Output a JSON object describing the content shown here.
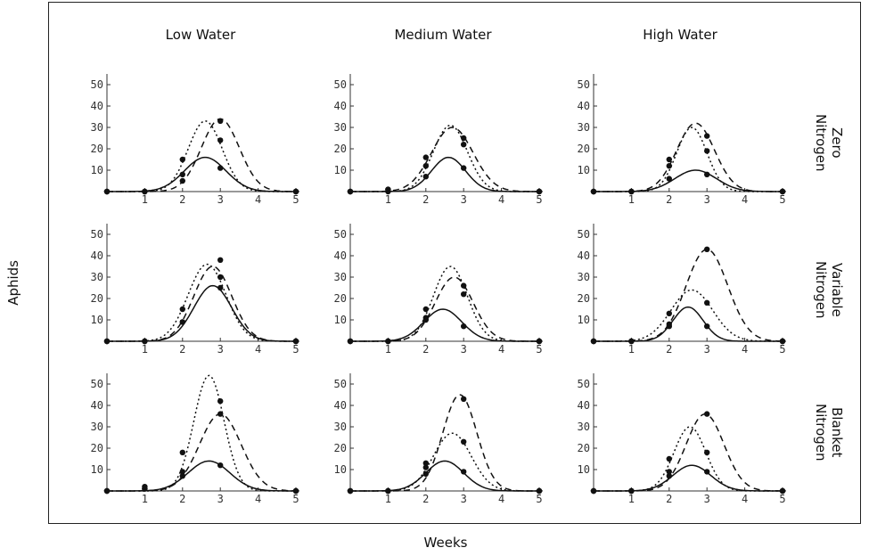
{
  "axes": {
    "xlabel": "Weeks",
    "ylabel": "Aphids"
  },
  "columns": [
    "Low Water",
    "Medium Water",
    "High Water"
  ],
  "rows": [
    [
      "Zero",
      "Nitrogen"
    ],
    [
      "Variable",
      "Nitrogen"
    ],
    [
      "Blanket",
      "Nitrogen"
    ]
  ],
  "chart_data": {
    "type": "line",
    "xlabel": "Weeks",
    "ylabel": "Aphids",
    "xlim": [
      0,
      5
    ],
    "ylim": [
      0,
      50
    ],
    "xticks": [
      1,
      2,
      3,
      4,
      5
    ],
    "yticks": [
      10,
      20,
      30,
      40,
      50
    ],
    "grid": false,
    "line_styles": [
      "solid",
      "dashed",
      "dotted"
    ],
    "panels": [
      {
        "column": "Low Water",
        "row": "Zero Nitrogen",
        "series": [
          {
            "style": "solid",
            "peak": 16,
            "center": 2.6,
            "width": 0.55,
            "points": [
              [
                0,
                0
              ],
              [
                1,
                0
              ],
              [
                2,
                8
              ],
              [
                3,
                11
              ],
              [
                5,
                0
              ]
            ]
          },
          {
            "style": "dashed",
            "peak": 34,
            "center": 3.0,
            "width": 0.5,
            "points": [
              [
                0,
                0
              ],
              [
                1,
                0
              ],
              [
                2,
                5
              ],
              [
                3,
                33
              ],
              [
                5,
                0
              ]
            ]
          },
          {
            "style": "dotted",
            "peak": 33,
            "center": 2.6,
            "width": 0.45,
            "points": [
              [
                0,
                0
              ],
              [
                1,
                0
              ],
              [
                2,
                15
              ],
              [
                3,
                24
              ],
              [
                5,
                0
              ]
            ]
          }
        ]
      },
      {
        "column": "Medium Water",
        "row": "Zero Nitrogen",
        "series": [
          {
            "style": "solid",
            "peak": 16,
            "center": 2.6,
            "width": 0.45,
            "points": [
              [
                0,
                0
              ],
              [
                1,
                1
              ],
              [
                2,
                7
              ],
              [
                3,
                11
              ],
              [
                5,
                0
              ]
            ]
          },
          {
            "style": "dashed",
            "peak": 30,
            "center": 2.7,
            "width": 0.55,
            "points": [
              [
                0,
                0
              ],
              [
                1,
                0
              ],
              [
                2,
                12
              ],
              [
                3,
                25
              ],
              [
                5,
                0
              ]
            ]
          },
          {
            "style": "dotted",
            "peak": 31,
            "center": 2.65,
            "width": 0.45,
            "points": [
              [
                0,
                0
              ],
              [
                1,
                1
              ],
              [
                2,
                16
              ],
              [
                3,
                22
              ],
              [
                5,
                0
              ]
            ]
          }
        ]
      },
      {
        "column": "High Water",
        "row": "Zero Nitrogen",
        "series": [
          {
            "style": "solid",
            "peak": 10,
            "center": 2.7,
            "width": 0.55,
            "points": [
              [
                0,
                0
              ],
              [
                1,
                0
              ],
              [
                2,
                6
              ],
              [
                3,
                8
              ],
              [
                5,
                0
              ]
            ]
          },
          {
            "style": "dashed",
            "peak": 32,
            "center": 2.7,
            "width": 0.5,
            "points": [
              [
                0,
                0
              ],
              [
                1,
                0
              ],
              [
                2,
                12
              ],
              [
                3,
                26
              ],
              [
                5,
                0
              ]
            ]
          },
          {
            "style": "dotted",
            "peak": 30,
            "center": 2.6,
            "width": 0.4,
            "points": [
              [
                0,
                0
              ],
              [
                1,
                0
              ],
              [
                2,
                15
              ],
              [
                3,
                19
              ],
              [
                5,
                0
              ]
            ]
          }
        ]
      },
      {
        "column": "Low Water",
        "row": "Variable Nitrogen",
        "series": [
          {
            "style": "solid",
            "peak": 26,
            "center": 2.8,
            "width": 0.5,
            "points": [
              [
                0,
                0
              ],
              [
                1,
                0
              ],
              [
                2,
                9
              ],
              [
                3,
                25
              ],
              [
                5,
                0
              ]
            ]
          },
          {
            "style": "dashed",
            "peak": 35,
            "center": 2.8,
            "width": 0.5,
            "points": [
              [
                0,
                0
              ],
              [
                1,
                0
              ],
              [
                2,
                9
              ],
              [
                3,
                38
              ],
              [
                5,
                0
              ]
            ]
          },
          {
            "style": "dotted",
            "peak": 36,
            "center": 2.65,
            "width": 0.5,
            "points": [
              [
                0,
                0
              ],
              [
                1,
                0
              ],
              [
                2,
                15
              ],
              [
                3,
                30
              ],
              [
                5,
                0
              ]
            ]
          }
        ]
      },
      {
        "column": "Medium Water",
        "row": "Variable Nitrogen",
        "series": [
          {
            "style": "solid",
            "peak": 15,
            "center": 2.45,
            "width": 0.5,
            "points": [
              [
                0,
                0
              ],
              [
                1,
                0
              ],
              [
                2,
                10
              ],
              [
                3,
                7
              ],
              [
                5,
                0
              ]
            ]
          },
          {
            "style": "dashed",
            "peak": 30,
            "center": 2.75,
            "width": 0.5,
            "points": [
              [
                0,
                0
              ],
              [
                1,
                0
              ],
              [
                2,
                11
              ],
              [
                3,
                26
              ],
              [
                5,
                0
              ]
            ]
          },
          {
            "style": "dotted",
            "peak": 35,
            "center": 2.65,
            "width": 0.45,
            "points": [
              [
                0,
                0
              ],
              [
                1,
                0
              ],
              [
                2,
                15
              ],
              [
                3,
                22
              ],
              [
                5,
                0
              ]
            ]
          }
        ]
      },
      {
        "column": "High Water",
        "row": "Variable Nitrogen",
        "series": [
          {
            "style": "solid",
            "peak": 16,
            "center": 2.5,
            "width": 0.4,
            "points": [
              [
                0,
                0
              ],
              [
                1,
                0
              ],
              [
                2,
                7
              ],
              [
                3,
                7
              ],
              [
                5,
                0
              ]
            ]
          },
          {
            "style": "dashed",
            "peak": 43,
            "center": 3.0,
            "width": 0.55,
            "points": [
              [
                0,
                0
              ],
              [
                1,
                0
              ],
              [
                2,
                8
              ],
              [
                3,
                43
              ],
              [
                5,
                0
              ]
            ]
          },
          {
            "style": "dotted",
            "peak": 24,
            "center": 2.6,
            "width": 0.55,
            "points": [
              [
                0,
                0
              ],
              [
                1,
                0
              ],
              [
                2,
                13
              ],
              [
                3,
                18
              ],
              [
                5,
                0
              ]
            ]
          }
        ]
      },
      {
        "column": "Low Water",
        "row": "Blanket Nitrogen",
        "series": [
          {
            "style": "solid",
            "peak": 14,
            "center": 2.7,
            "width": 0.55,
            "points": [
              [
                0,
                0
              ],
              [
                1,
                1
              ],
              [
                2,
                7
              ],
              [
                3,
                12
              ],
              [
                5,
                0
              ]
            ]
          },
          {
            "style": "dashed",
            "peak": 36,
            "center": 3.0,
            "width": 0.55,
            "points": [
              [
                0,
                0
              ],
              [
                1,
                1
              ],
              [
                2,
                9
              ],
              [
                3,
                36
              ],
              [
                5,
                0
              ]
            ]
          },
          {
            "style": "dotted",
            "peak": 54,
            "center": 2.7,
            "width": 0.4,
            "points": [
              [
                0,
                0
              ],
              [
                1,
                2
              ],
              [
                2,
                18
              ],
              [
                3,
                42
              ],
              [
                5,
                0
              ]
            ]
          }
        ]
      },
      {
        "column": "Medium Water",
        "row": "Blanket Nitrogen",
        "series": [
          {
            "style": "solid",
            "peak": 14,
            "center": 2.5,
            "width": 0.5,
            "points": [
              [
                0,
                0
              ],
              [
                1,
                0
              ],
              [
                2,
                8
              ],
              [
                3,
                9
              ],
              [
                5,
                0
              ]
            ]
          },
          {
            "style": "dashed",
            "peak": 45,
            "center": 2.9,
            "width": 0.45,
            "points": [
              [
                0,
                0
              ],
              [
                1,
                0
              ],
              [
                2,
                11
              ],
              [
                3,
                43
              ],
              [
                5,
                0
              ]
            ]
          },
          {
            "style": "dotted",
            "peak": 27,
            "center": 2.7,
            "width": 0.5,
            "points": [
              [
                0,
                0
              ],
              [
                1,
                0
              ],
              [
                2,
                13
              ],
              [
                3,
                23
              ],
              [
                5,
                0
              ]
            ]
          }
        ]
      },
      {
        "column": "High Water",
        "row": "Blanket Nitrogen",
        "series": [
          {
            "style": "solid",
            "peak": 12,
            "center": 2.6,
            "width": 0.5,
            "points": [
              [
                0,
                0
              ],
              [
                1,
                0
              ],
              [
                2,
                7
              ],
              [
                3,
                9
              ],
              [
                5,
                0
              ]
            ]
          },
          {
            "style": "dashed",
            "peak": 36,
            "center": 2.95,
            "width": 0.5,
            "points": [
              [
                0,
                0
              ],
              [
                1,
                0
              ],
              [
                2,
                9
              ],
              [
                3,
                36
              ],
              [
                5,
                0
              ]
            ]
          },
          {
            "style": "dotted",
            "peak": 30,
            "center": 2.55,
            "width": 0.42,
            "points": [
              [
                0,
                0
              ],
              [
                1,
                0
              ],
              [
                2,
                15
              ],
              [
                3,
                18
              ],
              [
                5,
                0
              ]
            ]
          }
        ]
      }
    ]
  }
}
